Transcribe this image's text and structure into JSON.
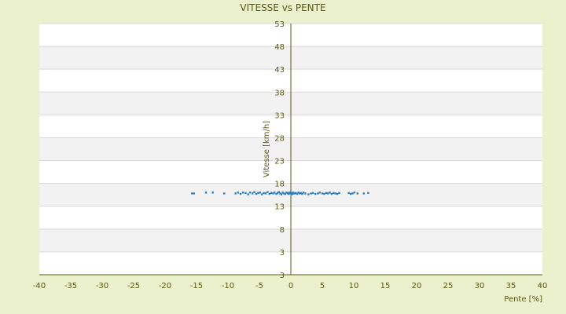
{
  "chart_data": {
    "type": "scatter",
    "title": "VITESSE vs PENTE",
    "xlabel": "Pente [%]",
    "ylabel": "Vitesse [km/h]",
    "xlim": [
      -40,
      40
    ],
    "ylim": [
      3,
      53
    ],
    "x_ticks": [
      "-40",
      "-35",
      "-30",
      "-25",
      "-20",
      "-15",
      "-10",
      "-5",
      "0",
      "5",
      "10",
      "15",
      "20",
      "25",
      "30",
      "35",
      "40"
    ],
    "y_ticks": [
      "3",
      "3",
      "8",
      "13",
      "18",
      "23",
      "28",
      "33",
      "38",
      "43",
      "48",
      "53"
    ],
    "grid": true,
    "legend": "none",
    "colors": {
      "point": "#2e7ec3",
      "band": "#f2f2f2",
      "plot_bg": "#ffffff",
      "grid": "#d9d9d9",
      "axis": "#5a5a14"
    },
    "points": [
      [
        -15.7,
        15.8
      ],
      [
        -15.4,
        15.8
      ],
      [
        -13.5,
        16.0
      ],
      [
        -12.4,
        16.0
      ],
      [
        -10.6,
        15.8
      ],
      [
        -8.8,
        15.8
      ],
      [
        -8.4,
        16.0
      ],
      [
        -8.0,
        15.7
      ],
      [
        -7.6,
        16.0
      ],
      [
        -7.2,
        15.9
      ],
      [
        -6.8,
        15.6
      ],
      [
        -6.5,
        16.0
      ],
      [
        -6.1,
        15.8
      ],
      [
        -5.8,
        16.1
      ],
      [
        -5.5,
        15.7
      ],
      [
        -5.2,
        15.9
      ],
      [
        -4.9,
        16.0
      ],
      [
        -4.6,
        15.6
      ],
      [
        -4.3,
        15.9
      ],
      [
        -4.0,
        15.8
      ],
      [
        -3.7,
        16.1
      ],
      [
        -3.4,
        15.7
      ],
      [
        -3.1,
        15.9
      ],
      [
        -2.8,
        15.8
      ],
      [
        -2.6,
        16.0
      ],
      [
        -2.3,
        15.7
      ],
      [
        -2.1,
        15.9
      ],
      [
        -1.9,
        16.1
      ],
      [
        -1.7,
        15.8
      ],
      [
        -1.5,
        15.6
      ],
      [
        -1.3,
        16.0
      ],
      [
        -1.1,
        15.8
      ],
      [
        -0.9,
        15.7
      ],
      [
        -0.7,
        16.0
      ],
      [
        -0.5,
        15.9
      ],
      [
        -0.4,
        15.7
      ],
      [
        -0.3,
        15.8
      ],
      [
        -0.2,
        16.0
      ],
      [
        -0.1,
        15.9
      ],
      [
        0.0,
        15.8
      ],
      [
        0.1,
        15.6
      ],
      [
        0.2,
        15.9
      ],
      [
        0.3,
        15.7
      ],
      [
        0.4,
        16.0
      ],
      [
        0.6,
        15.8
      ],
      [
        0.8,
        15.9
      ],
      [
        1.0,
        15.7
      ],
      [
        1.2,
        16.0
      ],
      [
        1.4,
        15.8
      ],
      [
        1.6,
        15.9
      ],
      [
        1.8,
        15.7
      ],
      [
        2.0,
        16.0
      ],
      [
        2.3,
        15.8
      ],
      [
        2.8,
        15.6
      ],
      [
        3.2,
        15.8
      ],
      [
        3.5,
        15.9
      ],
      [
        3.9,
        15.7
      ],
      [
        4.3,
        15.8
      ],
      [
        4.6,
        16.0
      ],
      [
        5.0,
        15.8
      ],
      [
        5.3,
        15.7
      ],
      [
        5.6,
        15.9
      ],
      [
        5.9,
        15.8
      ],
      [
        6.2,
        16.0
      ],
      [
        6.5,
        15.7
      ],
      [
        6.8,
        15.9
      ],
      [
        7.1,
        15.8
      ],
      [
        7.4,
        15.7
      ],
      [
        7.7,
        15.9
      ],
      [
        9.2,
        15.9
      ],
      [
        9.5,
        15.7
      ],
      [
        9.8,
        15.8
      ],
      [
        10.1,
        16.0
      ],
      [
        10.6,
        15.8
      ],
      [
        11.6,
        15.8
      ],
      [
        12.3,
        15.9
      ]
    ]
  }
}
